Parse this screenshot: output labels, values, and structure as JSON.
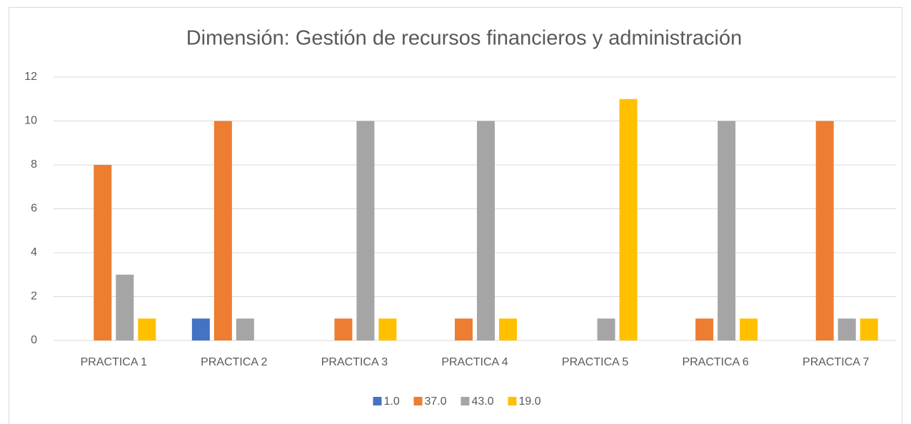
{
  "chart_data": {
    "type": "bar",
    "title": "Dimensión: Gestión de recursos financieros y administración",
    "categories": [
      "PRACTICA 1",
      "PRACTICA 2",
      "PRACTICA 3",
      "PRACTICA 4",
      "PRACTICA 5",
      "PRACTICA 6",
      "PRACTICA 7"
    ],
    "series": [
      {
        "name": "1.0",
        "color": "#4472c4",
        "values": [
          0,
          1,
          0,
          0,
          0,
          0,
          0
        ]
      },
      {
        "name": "37.0",
        "color": "#ed7d31",
        "values": [
          8,
          10,
          1,
          1,
          0,
          1,
          10
        ]
      },
      {
        "name": "43.0",
        "color": "#a5a5a5",
        "values": [
          3,
          1,
          10,
          10,
          1,
          10,
          1
        ]
      },
      {
        "name": "19.0",
        "color": "#ffc000",
        "values": [
          1,
          0,
          1,
          1,
          11,
          1,
          1
        ]
      }
    ],
    "ylim": [
      0,
      12
    ],
    "yticks": [
      0,
      2,
      4,
      6,
      8,
      10,
      12
    ],
    "grid": true,
    "legend": "bottom"
  }
}
